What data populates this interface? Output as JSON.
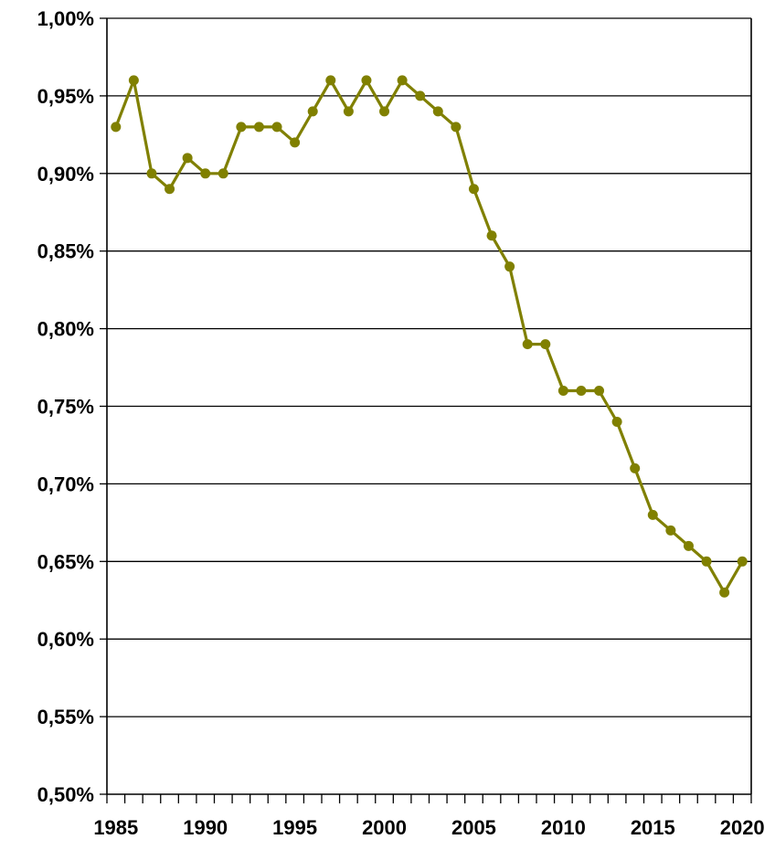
{
  "chart_data": {
    "type": "line",
    "title": "",
    "xlabel": "",
    "ylabel": "",
    "x": [
      1985,
      1986,
      1987,
      1988,
      1989,
      1990,
      1991,
      1992,
      1993,
      1994,
      1995,
      1996,
      1997,
      1998,
      1999,
      2000,
      2001,
      2002,
      2003,
      2004,
      2005,
      2006,
      2007,
      2008,
      2009,
      2010,
      2011,
      2012,
      2013,
      2014,
      2015,
      2016,
      2017,
      2018,
      2019,
      2020
    ],
    "series": [
      {
        "values": [
          0.93,
          0.96,
          0.9,
          0.89,
          0.91,
          0.9,
          0.9,
          0.93,
          0.93,
          0.93,
          0.92,
          0.94,
          0.96,
          0.94,
          0.96,
          0.94,
          0.96,
          0.95,
          0.94,
          0.93,
          0.89,
          0.86,
          0.84,
          0.79,
          0.79,
          0.76,
          0.76,
          0.76,
          0.74,
          0.71,
          0.68,
          0.67,
          0.66,
          0.65,
          0.63,
          0.65
        ],
        "color": "#808000"
      }
    ],
    "xlim": [
      1985,
      2020
    ],
    "ylim": [
      0.5,
      1.0
    ],
    "y_ticks": [
      0.5,
      0.55,
      0.6,
      0.65,
      0.7,
      0.75,
      0.8,
      0.85,
      0.9,
      0.95,
      1.0
    ],
    "y_tick_labels": [
      "0,50%",
      "0,55%",
      "0,60%",
      "0,65%",
      "0,70%",
      "0,75%",
      "0,80%",
      "0,85%",
      "0,90%",
      "0,95%",
      "1,00%"
    ],
    "x_tick_labels": [
      "1985",
      "1990",
      "1995",
      "2000",
      "2005",
      "2010",
      "2015",
      "2020"
    ],
    "x_label_years": [
      1985,
      1990,
      1995,
      2000,
      2005,
      2010,
      2015,
      2020
    ],
    "grid": true,
    "legend": "none"
  }
}
